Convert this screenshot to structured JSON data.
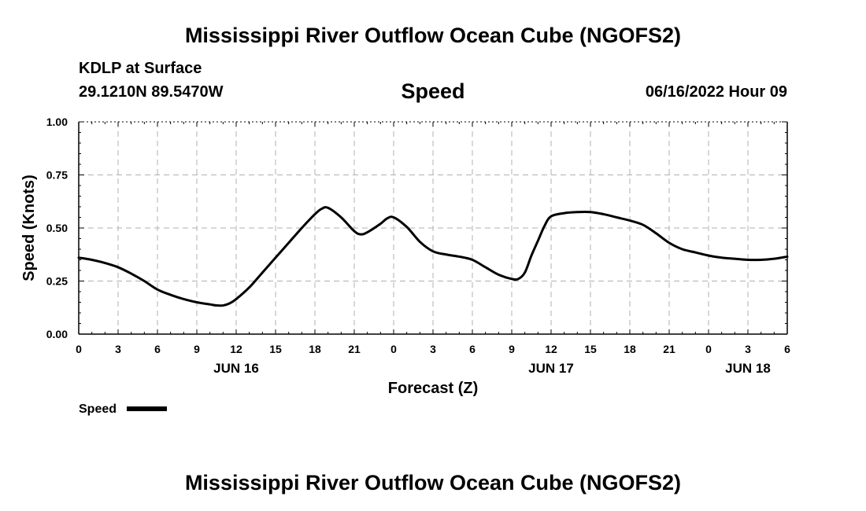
{
  "header": {
    "title": "Mississippi River Outflow Ocean Cube (NGOFS2)",
    "station": "KDLP at Surface",
    "coords": "29.1210N  89.5470W",
    "chart_title": "Speed",
    "datetime": "06/16/2022 Hour 09"
  },
  "footer": {
    "title": "Mississippi River Outflow Ocean Cube (NGOFS2)"
  },
  "chart_data": {
    "type": "line",
    "title": "Speed",
    "xlabel": "Forecast (Z)",
    "ylabel": "Speed (Knots)",
    "xlim": [
      0,
      54
    ],
    "ylim": [
      0,
      1
    ],
    "grid": true,
    "x_tick_values": [
      0,
      3,
      6,
      9,
      12,
      15,
      18,
      21,
      24,
      27,
      30,
      33,
      36,
      39,
      42,
      45,
      48,
      51,
      54
    ],
    "x_tick_labels": [
      "0",
      "3",
      "6",
      "9",
      "12",
      "15",
      "18",
      "21",
      "0",
      "3",
      "6",
      "9",
      "12",
      "15",
      "18",
      "21",
      "0",
      "3",
      "6"
    ],
    "y_tick_values": [
      0,
      0.25,
      0.5,
      0.75,
      1.0
    ],
    "y_tick_labels": [
      "0.00",
      "0.25",
      "0.50",
      "0.75",
      "1.00"
    ],
    "date_labels": [
      {
        "x": 12,
        "label": "JUN 16"
      },
      {
        "x": 36,
        "label": "JUN 17"
      },
      {
        "x": 51,
        "label": "JUN 18"
      }
    ],
    "legend": {
      "label": "Speed",
      "position": "bottom-left"
    },
    "series": [
      {
        "name": "Speed",
        "color": "#000000",
        "x": [
          0,
          1,
          2,
          3,
          4,
          5,
          6,
          7,
          8,
          9,
          10,
          10.5,
          11,
          11.5,
          12,
          13,
          14,
          15,
          16,
          17,
          18,
          18.5,
          19,
          20,
          21,
          21.5,
          22,
          23,
          23.5,
          24,
          25,
          26,
          27,
          28,
          29,
          30,
          31,
          32,
          33,
          33.5,
          34,
          34.5,
          35,
          35.5,
          36,
          37,
          38,
          39,
          40,
          41,
          42,
          43,
          44,
          45,
          46,
          47,
          48,
          49,
          50,
          51,
          52,
          53,
          54
        ],
        "values": [
          0.36,
          0.35,
          0.335,
          0.315,
          0.285,
          0.25,
          0.21,
          0.185,
          0.165,
          0.15,
          0.14,
          0.135,
          0.135,
          0.145,
          0.165,
          0.22,
          0.29,
          0.36,
          0.43,
          0.5,
          0.565,
          0.59,
          0.595,
          0.55,
          0.485,
          0.47,
          0.48,
          0.52,
          0.545,
          0.55,
          0.505,
          0.435,
          0.39,
          0.375,
          0.365,
          0.35,
          0.315,
          0.28,
          0.26,
          0.26,
          0.29,
          0.37,
          0.44,
          0.51,
          0.555,
          0.57,
          0.575,
          0.575,
          0.565,
          0.55,
          0.535,
          0.515,
          0.475,
          0.43,
          0.4,
          0.385,
          0.37,
          0.36,
          0.355,
          0.35,
          0.35,
          0.355,
          0.365
        ]
      }
    ]
  }
}
